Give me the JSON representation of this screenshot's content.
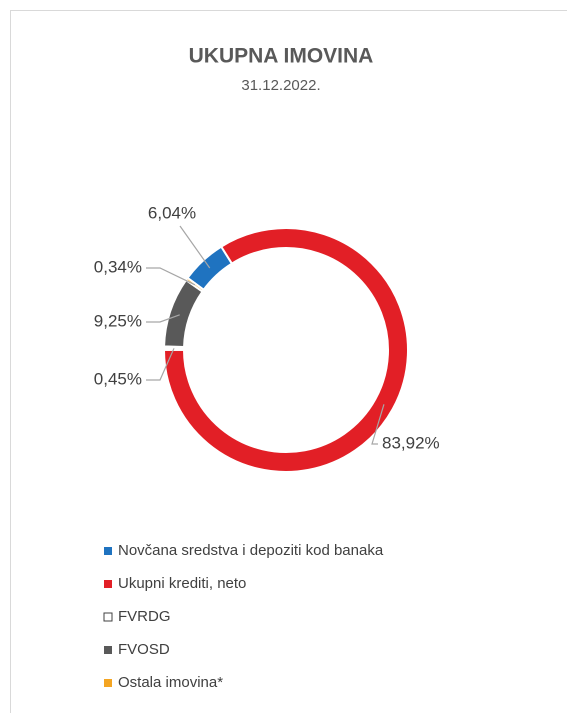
{
  "chart_data": {
    "type": "pie",
    "title": "UKUPNA IMOVINA",
    "subtitle": "31.12.2022.",
    "categories": [
      "Novčana sredstva i depoziti kod banaka",
      "Ukupni krediti, neto",
      "FVRDG",
      "FVOSD",
      "Ostala imovina*"
    ],
    "values": [
      6.04,
      83.92,
      0.45,
      9.25,
      0.34
    ],
    "value_labels": [
      "6,04%",
      "83,92%",
      "0,45%",
      "9,25%",
      "0,34%"
    ],
    "colors": [
      "#1f73c0",
      "#e21f26",
      "#ffffff",
      "#595959",
      "#f4a522"
    ],
    "donut": true,
    "legend": "bottom"
  }
}
